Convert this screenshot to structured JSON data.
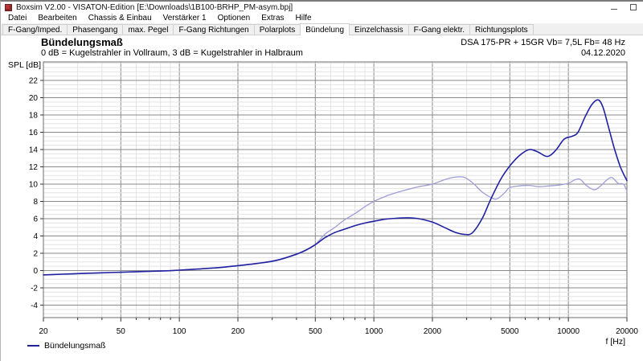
{
  "window": {
    "title": "Boxsim V2.00 - VISATON-Edition [E:\\Downloads\\1B100-BRHP_PM-asym.bpj]",
    "app_icon": "boxsim-speaker-icon",
    "controls": {
      "minimize": "minimize",
      "maximize": "maximize"
    }
  },
  "menu": {
    "items": [
      "Datei",
      "Bearbeiten",
      "Chassis & Einbau",
      "Verstärker 1",
      "Optionen",
      "Extras",
      "Hilfe"
    ]
  },
  "tabs": {
    "selected": "Bündelung",
    "items": [
      "F-Gang/Imped.",
      "Phasengang",
      "max. Pegel",
      "F-Gang Richtungen",
      "Polarplots",
      "Bündelung",
      "Einzelchassis",
      "F-Gang elektr.",
      "Richtungsplots"
    ]
  },
  "header": {
    "title": "Bündelungsmaß",
    "subtitle": "0 dB = Kugelstrahler in Vollraum, 3 dB = Kugelstrahler in Halbraum",
    "config": "DSA 175-PR + 15GR Vb= 7,5L Fb= 48 Hz",
    "date": "04.12.2020"
  },
  "chart_data": {
    "type": "line",
    "title": "Bündelungsmaß",
    "xlabel": "f [Hz]",
    "ylabel": "SPL [dB]",
    "x_scale": "log",
    "xlim": [
      20,
      20000
    ],
    "ylim": [
      -5.44,
      24.14
    ],
    "x_ticks": [
      20,
      50,
      100,
      200,
      500,
      1000,
      2000,
      5000,
      10000,
      20000
    ],
    "y_ticks": [
      22,
      20,
      18,
      16,
      14,
      12,
      10,
      8,
      6,
      4,
      2,
      0,
      -2,
      -4
    ],
    "y_minor_step": 0.5,
    "grid": "major+minor",
    "legend_position": "bottom-left",
    "legend": [
      {
        "label": "Bündelungsmaß",
        "color": "#2121a3"
      }
    ],
    "colors": {
      "grid_minor": "#e3e3e3",
      "grid_major": "#8a8a8a",
      "frame": "#6e6e6e",
      "tick": "#333333"
    },
    "series": [
      {
        "name": "Bündelungsmaß",
        "color": "#2121a3",
        "width": 1.6,
        "points": [
          [
            20,
            -0.5
          ],
          [
            25,
            -0.42
          ],
          [
            32,
            -0.33
          ],
          [
            40,
            -0.26
          ],
          [
            50,
            -0.19
          ],
          [
            63,
            -0.12
          ],
          [
            80,
            -0.05
          ],
          [
            100,
            0.05
          ],
          [
            125,
            0.18
          ],
          [
            160,
            0.35
          ],
          [
            200,
            0.57
          ],
          [
            250,
            0.82
          ],
          [
            315,
            1.18
          ],
          [
            400,
            1.9
          ],
          [
            450,
            2.4
          ],
          [
            500,
            3.0
          ],
          [
            560,
            3.8
          ],
          [
            630,
            4.4
          ],
          [
            710,
            4.8
          ],
          [
            800,
            5.2
          ],
          [
            900,
            5.5
          ],
          [
            1000,
            5.7
          ],
          [
            1150,
            5.95
          ],
          [
            1300,
            6.05
          ],
          [
            1500,
            6.1
          ],
          [
            1700,
            6.0
          ],
          [
            2000,
            5.6
          ],
          [
            2300,
            5.0
          ],
          [
            2600,
            4.45
          ],
          [
            2900,
            4.2
          ],
          [
            3200,
            4.35
          ],
          [
            3600,
            6.0
          ],
          [
            4000,
            8.3
          ],
          [
            4500,
            10.6
          ],
          [
            5000,
            12.1
          ],
          [
            5600,
            13.3
          ],
          [
            6300,
            14.0
          ],
          [
            7000,
            13.7
          ],
          [
            7800,
            13.2
          ],
          [
            8600,
            13.9
          ],
          [
            9500,
            15.2
          ],
          [
            10500,
            15.55
          ],
          [
            11200,
            16.0
          ],
          [
            12200,
            17.8
          ],
          [
            13200,
            19.2
          ],
          [
            14200,
            19.75
          ],
          [
            15000,
            19.0
          ],
          [
            16000,
            16.8
          ],
          [
            17200,
            14.2
          ],
          [
            18500,
            12.0
          ],
          [
            20000,
            10.4
          ]
        ]
      },
      {
        "name": "",
        "color": "#9e9ed6",
        "width": 1.3,
        "points": [
          [
            20,
            -0.5
          ],
          [
            25,
            -0.42
          ],
          [
            32,
            -0.33
          ],
          [
            40,
            -0.26
          ],
          [
            50,
            -0.19
          ],
          [
            63,
            -0.12
          ],
          [
            80,
            -0.05
          ],
          [
            100,
            0.05
          ],
          [
            125,
            0.18
          ],
          [
            160,
            0.35
          ],
          [
            200,
            0.55
          ],
          [
            250,
            0.8
          ],
          [
            315,
            1.15
          ],
          [
            400,
            1.85
          ],
          [
            450,
            2.35
          ],
          [
            500,
            3.0
          ],
          [
            560,
            4.2
          ],
          [
            630,
            5.0
          ],
          [
            710,
            5.9
          ],
          [
            800,
            6.6
          ],
          [
            900,
            7.4
          ],
          [
            1000,
            8.0
          ],
          [
            1150,
            8.6
          ],
          [
            1300,
            9.0
          ],
          [
            1500,
            9.4
          ],
          [
            1700,
            9.7
          ],
          [
            2000,
            10.0
          ],
          [
            2300,
            10.5
          ],
          [
            2600,
            10.8
          ],
          [
            2900,
            10.8
          ],
          [
            3200,
            10.2
          ],
          [
            3600,
            9.1
          ],
          [
            4000,
            8.45
          ],
          [
            4300,
            8.3
          ],
          [
            4700,
            9.0
          ],
          [
            5000,
            9.6
          ],
          [
            5600,
            9.8
          ],
          [
            6300,
            9.85
          ],
          [
            7100,
            9.7
          ],
          [
            8000,
            9.8
          ],
          [
            9000,
            9.9
          ],
          [
            10000,
            10.1
          ],
          [
            10800,
            10.5
          ],
          [
            11500,
            10.55
          ],
          [
            12300,
            9.9
          ],
          [
            13500,
            9.35
          ],
          [
            14500,
            9.7
          ],
          [
            15800,
            10.5
          ],
          [
            16800,
            10.75
          ],
          [
            18000,
            10.1
          ],
          [
            19200,
            10.0
          ],
          [
            20000,
            9.2
          ]
        ]
      }
    ]
  }
}
